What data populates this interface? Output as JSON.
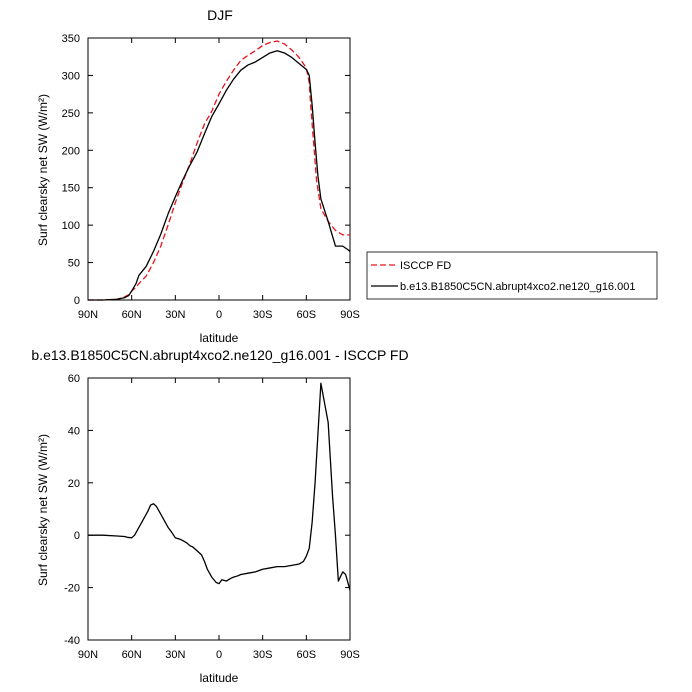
{
  "chart_data": [
    {
      "type": "line",
      "title": "DJF",
      "xlabel": "latitude",
      "ylabel": "Surf clearsky net SW (W/m²)",
      "xlim": [
        90,
        -90
      ],
      "ylim": [
        0,
        350
      ],
      "x_ticks": [
        {
          "value": 90,
          "label": "90N"
        },
        {
          "value": 60,
          "label": "60N"
        },
        {
          "value": 30,
          "label": "30N"
        },
        {
          "value": 0,
          "label": "0"
        },
        {
          "value": -30,
          "label": "30S"
        },
        {
          "value": -60,
          "label": "60S"
        },
        {
          "value": -90,
          "label": "90S"
        }
      ],
      "y_ticks": [
        0,
        50,
        100,
        150,
        200,
        250,
        300,
        350
      ],
      "grid": false,
      "legend_placement": "right",
      "series": [
        {
          "name": "ISCCP FD",
          "color": "#e8141c",
          "dash": "dashed",
          "x": [
            90,
            80,
            70,
            65,
            62,
            60,
            57,
            55,
            50,
            45,
            40,
            35,
            30,
            25,
            20,
            15,
            10,
            5,
            0,
            -5,
            -10,
            -15,
            -20,
            -25,
            -30,
            -35,
            -40,
            -45,
            -50,
            -55,
            -60,
            -62,
            -63,
            -65,
            -67,
            -70,
            -75,
            -80,
            -85,
            -90
          ],
          "y": [
            0,
            0,
            1,
            4,
            7,
            12,
            17,
            22,
            32,
            50,
            72,
            100,
            130,
            157,
            182,
            210,
            235,
            252,
            275,
            292,
            307,
            320,
            327,
            333,
            340,
            344,
            346,
            342,
            334,
            324,
            310,
            290,
            260,
            210,
            160,
            122,
            105,
            93,
            87,
            87
          ]
        },
        {
          "name": "b.e13.B1850C5CN.abrupt4xco2.ne120_g16.001",
          "color": "#000000",
          "dash": "solid",
          "x": [
            90,
            80,
            70,
            65,
            62,
            60,
            57,
            55,
            50,
            45,
            40,
            35,
            30,
            25,
            20,
            15,
            10,
            5,
            0,
            -5,
            -10,
            -15,
            -20,
            -25,
            -30,
            -35,
            -40,
            -45,
            -50,
            -55,
            -60,
            -62,
            -64,
            -66,
            -68,
            -70,
            -75,
            -80,
            -85,
            -88,
            -90
          ],
          "y": [
            0,
            0,
            1,
            3,
            6,
            12,
            22,
            33,
            45,
            65,
            88,
            115,
            138,
            160,
            180,
            198,
            222,
            245,
            262,
            280,
            295,
            307,
            314,
            318,
            324,
            330,
            333,
            330,
            324,
            316,
            308,
            300,
            260,
            210,
            165,
            135,
            105,
            72,
            72,
            68,
            65
          ]
        }
      ]
    },
    {
      "type": "line",
      "title": "b.e13.B1850C5CN.abrupt4xco2.ne120_g16.001 - ISCCP FD",
      "xlabel": "latitude",
      "ylabel": "Surf clearsky net SW (W/m²)",
      "xlim": [
        90,
        -90
      ],
      "ylim": [
        -40,
        60
      ],
      "x_ticks": [
        {
          "value": 90,
          "label": "90N"
        },
        {
          "value": 60,
          "label": "60N"
        },
        {
          "value": 30,
          "label": "30N"
        },
        {
          "value": 0,
          "label": "0"
        },
        {
          "value": -30,
          "label": "30S"
        },
        {
          "value": -60,
          "label": "60S"
        },
        {
          "value": -90,
          "label": "90S"
        }
      ],
      "y_ticks": [
        -40,
        -20,
        0,
        20,
        40,
        60
      ],
      "grid": false,
      "series": [
        {
          "color": "#000000",
          "dash": "solid",
          "x": [
            90,
            80,
            70,
            65,
            63,
            60,
            58,
            56,
            53,
            51,
            49,
            47,
            45,
            43,
            40,
            37,
            35,
            33,
            30,
            27,
            25,
            22,
            20,
            18,
            15,
            12,
            10,
            8,
            5,
            2,
            0,
            -2,
            -5,
            -8,
            -10,
            -13,
            -15,
            -20,
            -25,
            -30,
            -35,
            -40,
            -45,
            -50,
            -55,
            -58,
            -60,
            -62,
            -64,
            -66,
            -70,
            -73,
            -75,
            -78,
            -80,
            -82,
            -85,
            -87,
            -90
          ],
          "y": [
            0,
            0,
            -0.3,
            -0.5,
            -0.8,
            -1,
            0,
            2,
            5,
            7,
            9,
            11.5,
            12,
            11,
            8,
            5,
            3,
            1.5,
            -1,
            -1.5,
            -2,
            -3,
            -4,
            -4.5,
            -6,
            -7.5,
            -10,
            -13,
            -16,
            -18,
            -18.5,
            -17,
            -17.5,
            -16.5,
            -16,
            -15.5,
            -15,
            -14.5,
            -14,
            -13,
            -12.5,
            -12,
            -12,
            -11.5,
            -11,
            -10,
            -8,
            -5,
            5,
            20,
            58,
            49,
            43,
            15,
            0,
            -17.5,
            -14,
            -15,
            -21
          ]
        }
      ]
    }
  ]
}
